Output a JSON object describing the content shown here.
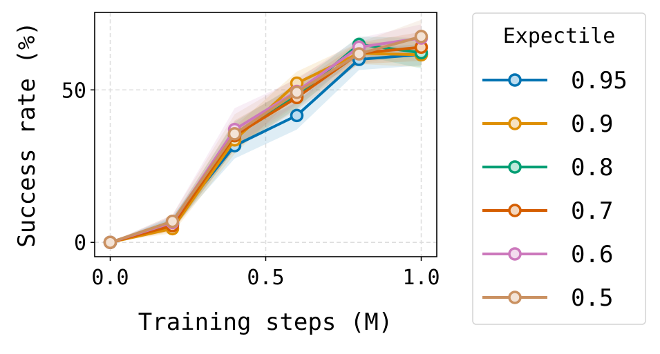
{
  "chart_data": {
    "type": "line",
    "title": "",
    "xlabel": "Training steps (M)",
    "ylabel": "Success rate (%)",
    "xlim": [
      -0.05,
      1.05
    ],
    "ylim": [
      -4.7,
      75.4
    ],
    "xticks": [
      0.0,
      0.5,
      1.0
    ],
    "xtick_labels": [
      "0.0",
      "0.5",
      "1.0"
    ],
    "yticks": [
      0,
      50
    ],
    "ytick_labels": [
      "0",
      "50"
    ],
    "grid": true,
    "legend": {
      "title": "Expectile",
      "placement": "outside-right"
    },
    "x": [
      0.0,
      0.2,
      0.4,
      0.6,
      0.8,
      1.0
    ],
    "series": [
      {
        "name": "0.95",
        "color": "#0173b2",
        "fill": "#bcdcef",
        "values": [
          0,
          6.4,
          31.7,
          41.6,
          60.0,
          61.6
        ],
        "lower": [
          0,
          4.5,
          27.5,
          37.0,
          56.5,
          58.0
        ],
        "upper": [
          0,
          8.5,
          35.5,
          46.0,
          63.5,
          65.0
        ]
      },
      {
        "name": "0.9",
        "color": "#de8f05",
        "fill": "#f6e2c0",
        "values": [
          0,
          4.5,
          33.6,
          52.2,
          62.0,
          61.5
        ],
        "lower": [
          0,
          3.0,
          29.0,
          48.5,
          58.5,
          57.5
        ],
        "upper": [
          0,
          6.5,
          38.0,
          56.0,
          65.5,
          66.0
        ]
      },
      {
        "name": "0.8",
        "color": "#029e73",
        "fill": "#bde8da",
        "values": [
          0,
          6.0,
          35.0,
          48.0,
          64.9,
          62.2
        ],
        "lower": [
          0,
          4.0,
          30.5,
          44.0,
          61.5,
          57.0
        ],
        "upper": [
          0,
          8.0,
          39.5,
          52.0,
          67.5,
          67.0
        ]
      },
      {
        "name": "0.7",
        "color": "#d55e00",
        "fill": "#f4d6bd",
        "values": [
          0,
          5.5,
          35.0,
          47.5,
          62.0,
          64.0
        ],
        "lower": [
          0,
          3.5,
          30.5,
          43.5,
          58.5,
          59.5
        ],
        "upper": [
          0,
          7.5,
          40.0,
          51.5,
          65.5,
          69.0
        ]
      },
      {
        "name": "0.6",
        "color": "#cc78bc",
        "fill": "#f3dcee",
        "values": [
          0,
          6.5,
          37.0,
          49.5,
          64.0,
          67.0
        ],
        "lower": [
          0,
          4.5,
          31.5,
          45.5,
          60.5,
          62.5
        ],
        "upper": [
          0,
          9.0,
          44.0,
          53.5,
          67.0,
          71.5
        ]
      },
      {
        "name": "0.5",
        "color": "#ca9161",
        "fill": "#f3e3d6",
        "values": [
          0,
          6.9,
          35.6,
          49.2,
          61.8,
          67.5
        ],
        "lower": [
          0,
          4.5,
          30.5,
          45.0,
          58.5,
          62.5
        ],
        "upper": [
          0,
          9.0,
          42.0,
          54.0,
          65.5,
          73.0
        ]
      }
    ]
  }
}
